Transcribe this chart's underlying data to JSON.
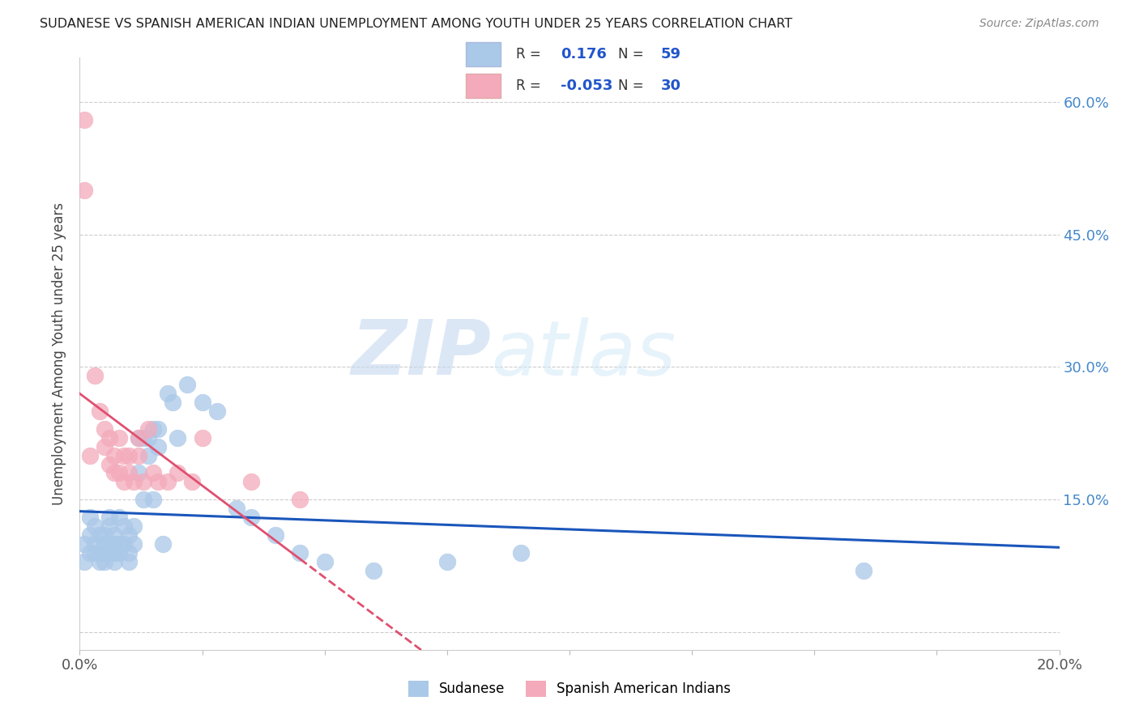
{
  "title": "SUDANESE VS SPANISH AMERICAN INDIAN UNEMPLOYMENT AMONG YOUTH UNDER 25 YEARS CORRELATION CHART",
  "source": "Source: ZipAtlas.com",
  "ylabel": "Unemployment Among Youth under 25 years",
  "xlim": [
    0.0,
    0.2
  ],
  "ylim": [
    -0.02,
    0.65
  ],
  "yticks": [
    0.0,
    0.15,
    0.3,
    0.45,
    0.6
  ],
  "ytick_labels": [
    "",
    "15.0%",
    "30.0%",
    "45.0%",
    "60.0%"
  ],
  "xticks": [
    0.0,
    0.025,
    0.05,
    0.075,
    0.1,
    0.125,
    0.15,
    0.175,
    0.2
  ],
  "xtick_labels": [
    "0.0%",
    "",
    "",
    "",
    "",
    "",
    "",
    "",
    "20.0%"
  ],
  "sudanese_color": "#aac8e8",
  "spanish_color": "#f4aabb",
  "line_sudanese_color": "#1a56bb",
  "line_spanish_color": "#e05070",
  "watermark_zip": "ZIP",
  "watermark_atlas": "atlas",
  "legend_labels": [
    "Sudanese",
    "Spanish American Indians"
  ],
  "sudanese_x": [
    0.001,
    0.001,
    0.002,
    0.002,
    0.002,
    0.003,
    0.003,
    0.003,
    0.004,
    0.004,
    0.004,
    0.005,
    0.005,
    0.005,
    0.005,
    0.006,
    0.006,
    0.006,
    0.006,
    0.007,
    0.007,
    0.007,
    0.007,
    0.008,
    0.008,
    0.008,
    0.009,
    0.009,
    0.01,
    0.01,
    0.01,
    0.011,
    0.011,
    0.012,
    0.012,
    0.013,
    0.013,
    0.014,
    0.014,
    0.015,
    0.015,
    0.016,
    0.016,
    0.017,
    0.018,
    0.019,
    0.02,
    0.022,
    0.025,
    0.028,
    0.032,
    0.035,
    0.04,
    0.045,
    0.05,
    0.06,
    0.075,
    0.09,
    0.16
  ],
  "sudanese_y": [
    0.1,
    0.08,
    0.09,
    0.11,
    0.13,
    0.1,
    0.09,
    0.12,
    0.09,
    0.11,
    0.08,
    0.1,
    0.09,
    0.11,
    0.08,
    0.13,
    0.1,
    0.09,
    0.12,
    0.1,
    0.09,
    0.11,
    0.08,
    0.1,
    0.13,
    0.09,
    0.1,
    0.12,
    0.11,
    0.09,
    0.08,
    0.1,
    0.12,
    0.22,
    0.18,
    0.15,
    0.22,
    0.22,
    0.2,
    0.23,
    0.15,
    0.23,
    0.21,
    0.1,
    0.27,
    0.26,
    0.22,
    0.28,
    0.26,
    0.25,
    0.14,
    0.13,
    0.11,
    0.09,
    0.08,
    0.07,
    0.08,
    0.09,
    0.07
  ],
  "spanish_x": [
    0.001,
    0.001,
    0.002,
    0.003,
    0.004,
    0.005,
    0.005,
    0.006,
    0.006,
    0.007,
    0.007,
    0.008,
    0.008,
    0.009,
    0.009,
    0.01,
    0.01,
    0.011,
    0.012,
    0.012,
    0.013,
    0.014,
    0.015,
    0.016,
    0.018,
    0.02,
    0.023,
    0.025,
    0.035,
    0.045
  ],
  "spanish_y": [
    0.5,
    0.58,
    0.2,
    0.29,
    0.25,
    0.21,
    0.23,
    0.22,
    0.19,
    0.2,
    0.18,
    0.22,
    0.18,
    0.2,
    0.17,
    0.2,
    0.18,
    0.17,
    0.22,
    0.2,
    0.17,
    0.23,
    0.18,
    0.17,
    0.17,
    0.18,
    0.17,
    0.22,
    0.17,
    0.15
  ]
}
